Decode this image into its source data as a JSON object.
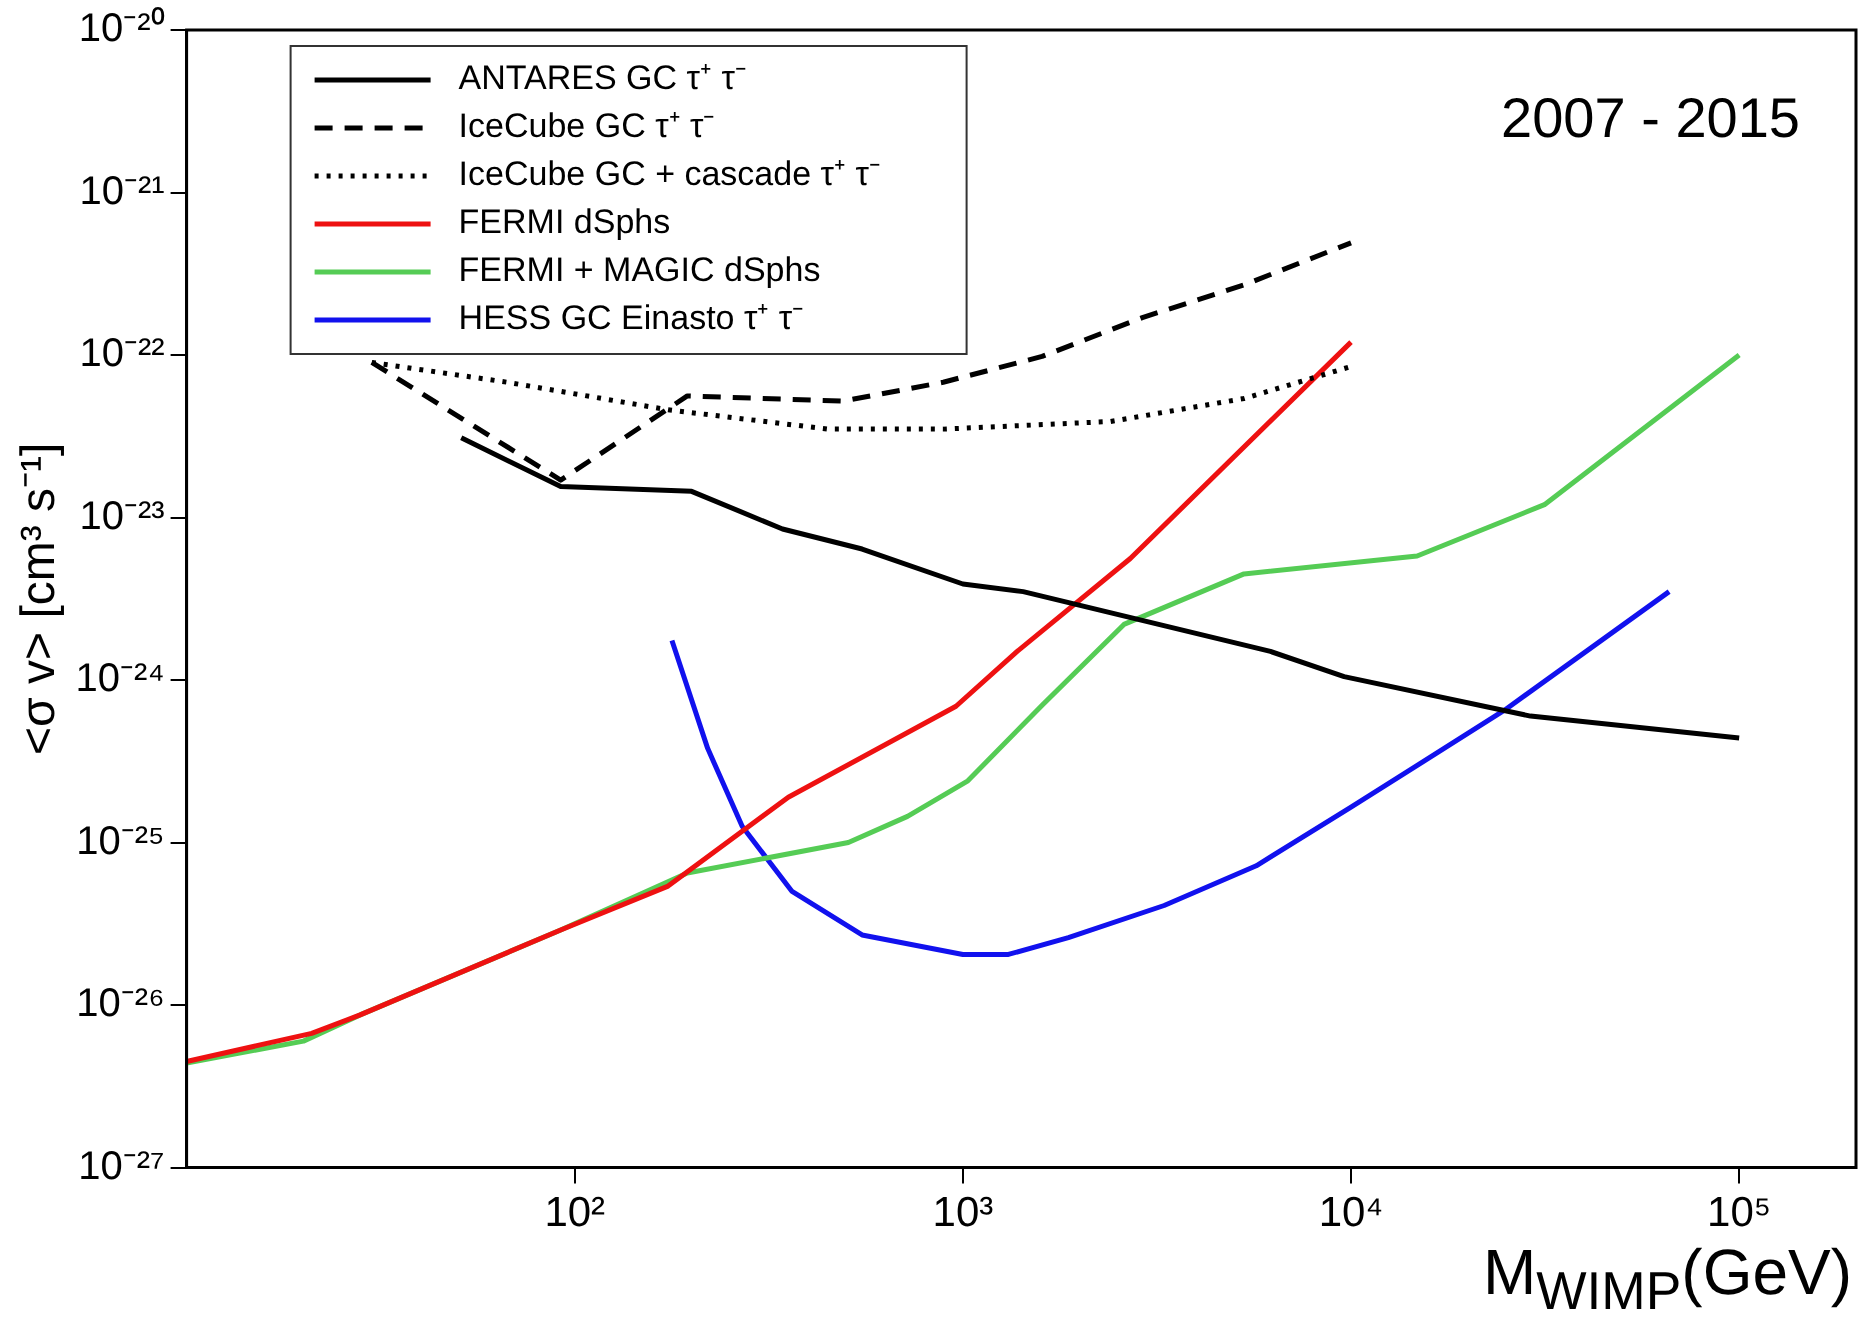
{
  "chart_data": {
    "type": "line",
    "xlabel": "M$_{WIMP}$(GeV)",
    "ylabel": "<σ v> [cm³ s⁻¹]",
    "log": "xy",
    "grid": false,
    "legend": "top left",
    "marker": "none",
    "xlim": [
      10,
      200000
    ],
    "ylim": [
      1e-27,
      1e-20
    ],
    "xticks": [
      {
        "value": 100,
        "label": "10²"
      },
      {
        "value": 1000,
        "label": "10³"
      },
      {
        "value": 10000,
        "label": "10⁴"
      },
      {
        "value": 100000,
        "label": "10⁵"
      }
    ],
    "yticks": [
      {
        "value": 1e-27,
        "label": "10⁻²⁷"
      },
      {
        "value": 1e-26,
        "label": "10⁻²⁶"
      },
      {
        "value": 1e-25,
        "label": "10⁻²⁵"
      },
      {
        "value": 1e-24,
        "label": "10⁻²⁴"
      },
      {
        "value": 1e-23,
        "label": "10⁻²³"
      },
      {
        "value": 1e-22,
        "label": "10⁻²²"
      },
      {
        "value": 1e-21,
        "label": "10⁻²¹"
      },
      {
        "value": 1e-20,
        "label": "10⁻²⁰"
      }
    ],
    "annotations": [
      "2007 - 2015"
    ],
    "series": [
      {
        "name": "ANTARES GC τ⁺ τ⁻",
        "color": "#000000",
        "line_style": "solid",
        "x": [
          51,
          92,
          200,
          343,
          550,
          1000,
          1430,
          6200,
          9600,
          29000,
          100000
        ],
        "values": [
          3.1e-23,
          1.55e-23,
          1.45e-23,
          8.5e-24,
          6.4e-24,
          3.9e-24,
          3.5e-24,
          1.5e-24,
          1.05e-24,
          6e-25,
          4.4e-25
        ]
      },
      {
        "name": "IceCube GC τ⁺ τ⁻",
        "color": "#000000",
        "line_style": "dashed",
        "x": [
          30,
          92,
          195,
          490,
          890,
          1600,
          2900,
          5300,
          10000
        ],
        "values": [
          9e-23,
          1.7e-23,
          5.6e-23,
          5.2e-23,
          6.8e-23,
          9.8e-23,
          1.7e-22,
          2.7e-22,
          4.9e-22
        ]
      },
      {
        "name": "IceCube GC + cascade τ⁺ τ⁻",
        "color": "#000000",
        "line_style": "dotted",
        "x": [
          30,
          67,
          174,
          450,
          890,
          2400,
          5300,
          10000
        ],
        "values": [
          9e-23,
          6.8e-23,
          4.6e-23,
          3.5e-23,
          3.5e-23,
          3.9e-23,
          5.4e-23,
          8.5e-23
        ]
      },
      {
        "name": "FERMI dSphs",
        "color": "#ee1111",
        "line_style": "solid",
        "x": [
          10,
          21,
          28,
          92,
          174,
          355,
          960,
          1380,
          2700,
          10000
        ],
        "values": [
          4.5e-27,
          6.7e-27,
          8.7e-27,
          2.9e-26,
          5.4e-26,
          1.9e-25,
          6.9e-25,
          1.5e-24,
          5.6e-24,
          1.2e-22
        ]
      },
      {
        "name": "FERMI + MAGIC dSphs",
        "color": "#55cc55",
        "line_style": "solid",
        "x": [
          10,
          20,
          28,
          92,
          195,
          507,
          720,
          1030,
          1600,
          2600,
          5300,
          14800,
          31500,
          100000
        ],
        "values": [
          4.4e-27,
          6e-27,
          8.7e-27,
          2.9e-26,
          6.5e-26,
          1e-25,
          1.45e-25,
          2.4e-25,
          7e-25,
          2.2e-24,
          4.5e-24,
          5.8e-24,
          1.2e-23,
          1e-22
        ]
      },
      {
        "name": "HESS GC Einasto τ⁺ τ⁻",
        "color": "#1111ee",
        "line_style": "solid",
        "x": [
          178,
          220,
          270,
          363,
          550,
          1000,
          1310,
          1870,
          3300,
          5700,
          10000,
          24800,
          66000
        ],
        "values": [
          1.75e-24,
          3.8e-25,
          1.26e-25,
          5e-26,
          2.7e-26,
          2.05e-26,
          2.05e-26,
          2.6e-26,
          4.1e-26,
          7.2e-26,
          1.65e-25,
          6.5e-25,
          3.5e-24
        ]
      }
    ]
  }
}
